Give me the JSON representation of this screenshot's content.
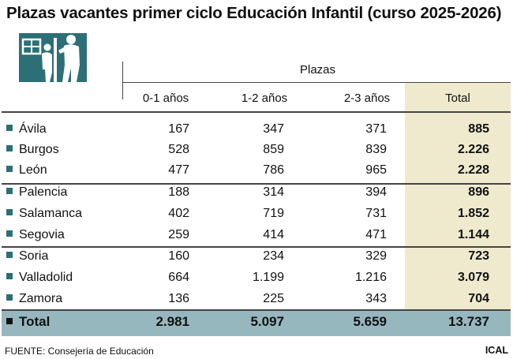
{
  "title": "Plazas vacantes primer ciclo Educación Infantil (curso 2025-2026)",
  "header": {
    "group_label": "Plazas",
    "columns": [
      "0-1 años",
      "1-2 años",
      "2-3 años",
      "Total"
    ]
  },
  "chart_data": {
    "type": "table",
    "columns": [
      "0-1 años",
      "1-2 años",
      "2-3 años",
      "Total"
    ],
    "rows": [
      {
        "label": "Ávila",
        "values": [
          "167",
          "347",
          "371",
          "885"
        ]
      },
      {
        "label": "Burgos",
        "values": [
          "528",
          "859",
          "839",
          "2.226"
        ]
      },
      {
        "label": "León",
        "values": [
          "477",
          "786",
          "965",
          "2.228"
        ]
      },
      {
        "label": "Palencia",
        "values": [
          "188",
          "314",
          "394",
          "896"
        ]
      },
      {
        "label": "Salamanca",
        "values": [
          "402",
          "719",
          "731",
          "1.852"
        ]
      },
      {
        "label": "Segovia",
        "values": [
          "259",
          "414",
          "471",
          "1.144"
        ]
      },
      {
        "label": "Soria",
        "values": [
          "160",
          "234",
          "329",
          "723"
        ]
      },
      {
        "label": "Valladolid",
        "values": [
          "664",
          "1.199",
          "1.216",
          "3.079"
        ]
      },
      {
        "label": "Zamora",
        "values": [
          "136",
          "225",
          "343",
          "704"
        ]
      }
    ],
    "total_row": {
      "label": "Total",
      "values": [
        "2.981",
        "5.097",
        "5.659",
        "13.737"
      ]
    }
  },
  "footer": {
    "source": "FUENTE: Consejería de Educación",
    "brand": "ICAL"
  },
  "colors": {
    "accent": "#2c6f77",
    "total_column": "#efeacd",
    "total_row": "#97b7bf"
  }
}
